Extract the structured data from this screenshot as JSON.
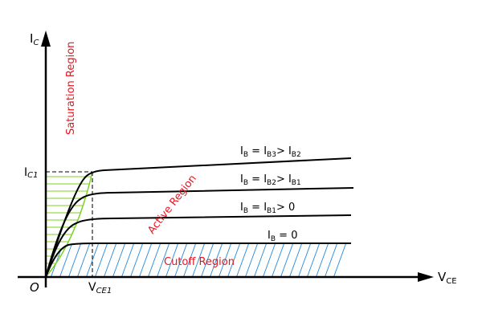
{
  "axes": {
    "y_label": "I",
    "y_sub": "C",
    "x_label": "V",
    "x_sub": "CE",
    "origin": "O",
    "ic1_label": "I",
    "ic1_sub": "C1",
    "vce1_label": "V",
    "vce1_sub": "CE1"
  },
  "regions": {
    "saturation": "Saturation Region",
    "active": "Active Region",
    "cutoff": "Cutoff Region"
  },
  "curves": [
    {
      "pre": "I",
      "sub1": "B",
      "mid": " = I",
      "sub2": "B3",
      "post": "> I",
      "sub3": "B2"
    },
    {
      "pre": "I",
      "sub1": "B",
      "mid": " = I",
      "sub2": "B2",
      "post": "> I",
      "sub3": "B1"
    },
    {
      "pre": "I",
      "sub1": "B",
      "mid": " = I",
      "sub2": "B1",
      "post": "> 0",
      "sub3": ""
    },
    {
      "pre": "I",
      "sub1": "B",
      "mid": " = 0",
      "sub2": "",
      "post": "",
      "sub3": ""
    }
  ],
  "colors": {
    "saturation_hatch": "#7ed321",
    "cutoff_hatch": "#2a8ee0",
    "region_text": "#e8141e"
  }
}
